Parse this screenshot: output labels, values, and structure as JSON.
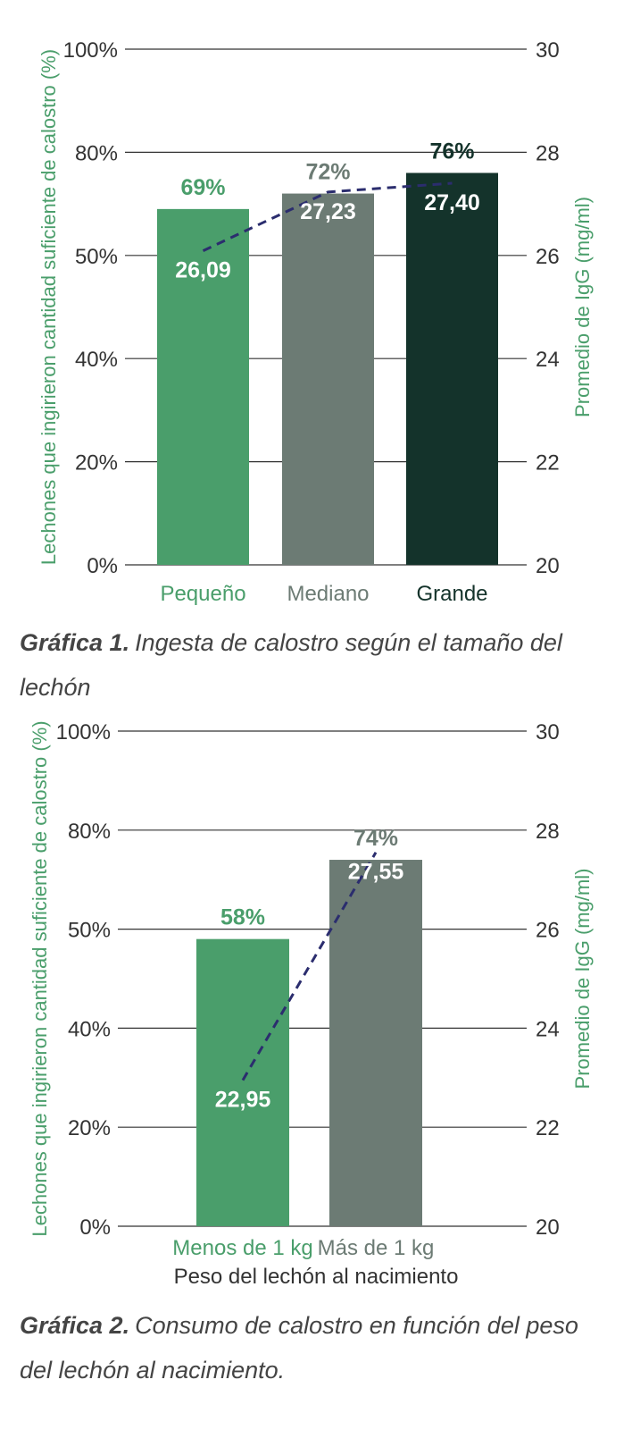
{
  "chart_data": [
    {
      "type": "bar",
      "categories": [
        "Pequeño",
        "Mediano",
        "Grande"
      ],
      "series": [
        {
          "values": [
            69,
            72,
            76
          ],
          "labels": [
            "69%",
            "72%",
            "76%"
          ]
        },
        {
          "values": [
            26.09,
            27.23,
            27.4
          ],
          "labels": [
            "26,09",
            "27,23",
            "27,40"
          ]
        }
      ],
      "left_axis": {
        "label": "Lechones que ingirieron cantidad suficiente de calostro (%)",
        "ticks": [
          "0%",
          "20%",
          "40%",
          "50%",
          "80%",
          "100%"
        ]
      },
      "right_axis": {
        "label": "Promedio de IgG (mg/ml)",
        "ylim": [
          20,
          30
        ],
        "ticks": [
          "20",
          "22",
          "24",
          "26",
          "28",
          "30"
        ]
      },
      "xlabel": "",
      "colors": {
        "bars": [
          "#4a9e6b",
          "#6c7b74",
          "#14332b"
        ],
        "labels": [
          "#4a9e6b",
          "#6c7b74",
          "#14332b"
        ],
        "line": "#2b2d6e",
        "axis_label": "#4a9e6b"
      },
      "caption_bold": "Gráfica 1.",
      "caption": "Ingesta de calostro según el tamaño del lechón"
    },
    {
      "type": "bar",
      "categories": [
        "Menos de 1 kg",
        "Más de 1 kg"
      ],
      "series": [
        {
          "values": [
            58,
            74
          ],
          "labels": [
            "58%",
            "74%"
          ]
        },
        {
          "values": [
            22.95,
            27.55
          ],
          "labels": [
            "22,95",
            "27,55"
          ]
        }
      ],
      "left_axis": {
        "label": "Lechones que ingirieron cantidad suficiente de calostro (%)",
        "ticks": [
          "0%",
          "20%",
          "40%",
          "50%",
          "80%",
          "100%"
        ]
      },
      "right_axis": {
        "label": "Promedio de IgG (mg/ml)",
        "ylim": [
          20,
          30
        ],
        "ticks": [
          "20",
          "22",
          "24",
          "26",
          "28",
          "30"
        ]
      },
      "xlabel": "Peso del lechón al nacimiento",
      "colors": {
        "bars": [
          "#4a9e6b",
          "#6c7b74"
        ],
        "labels": [
          "#4a9e6b",
          "#6c7b74"
        ],
        "line": "#2b2d6e",
        "axis_label": "#4a9e6b"
      },
      "caption_bold": "Gráfica 2.",
      "caption": "Consumo de calostro en función del peso del lechón al nacimiento."
    }
  ]
}
